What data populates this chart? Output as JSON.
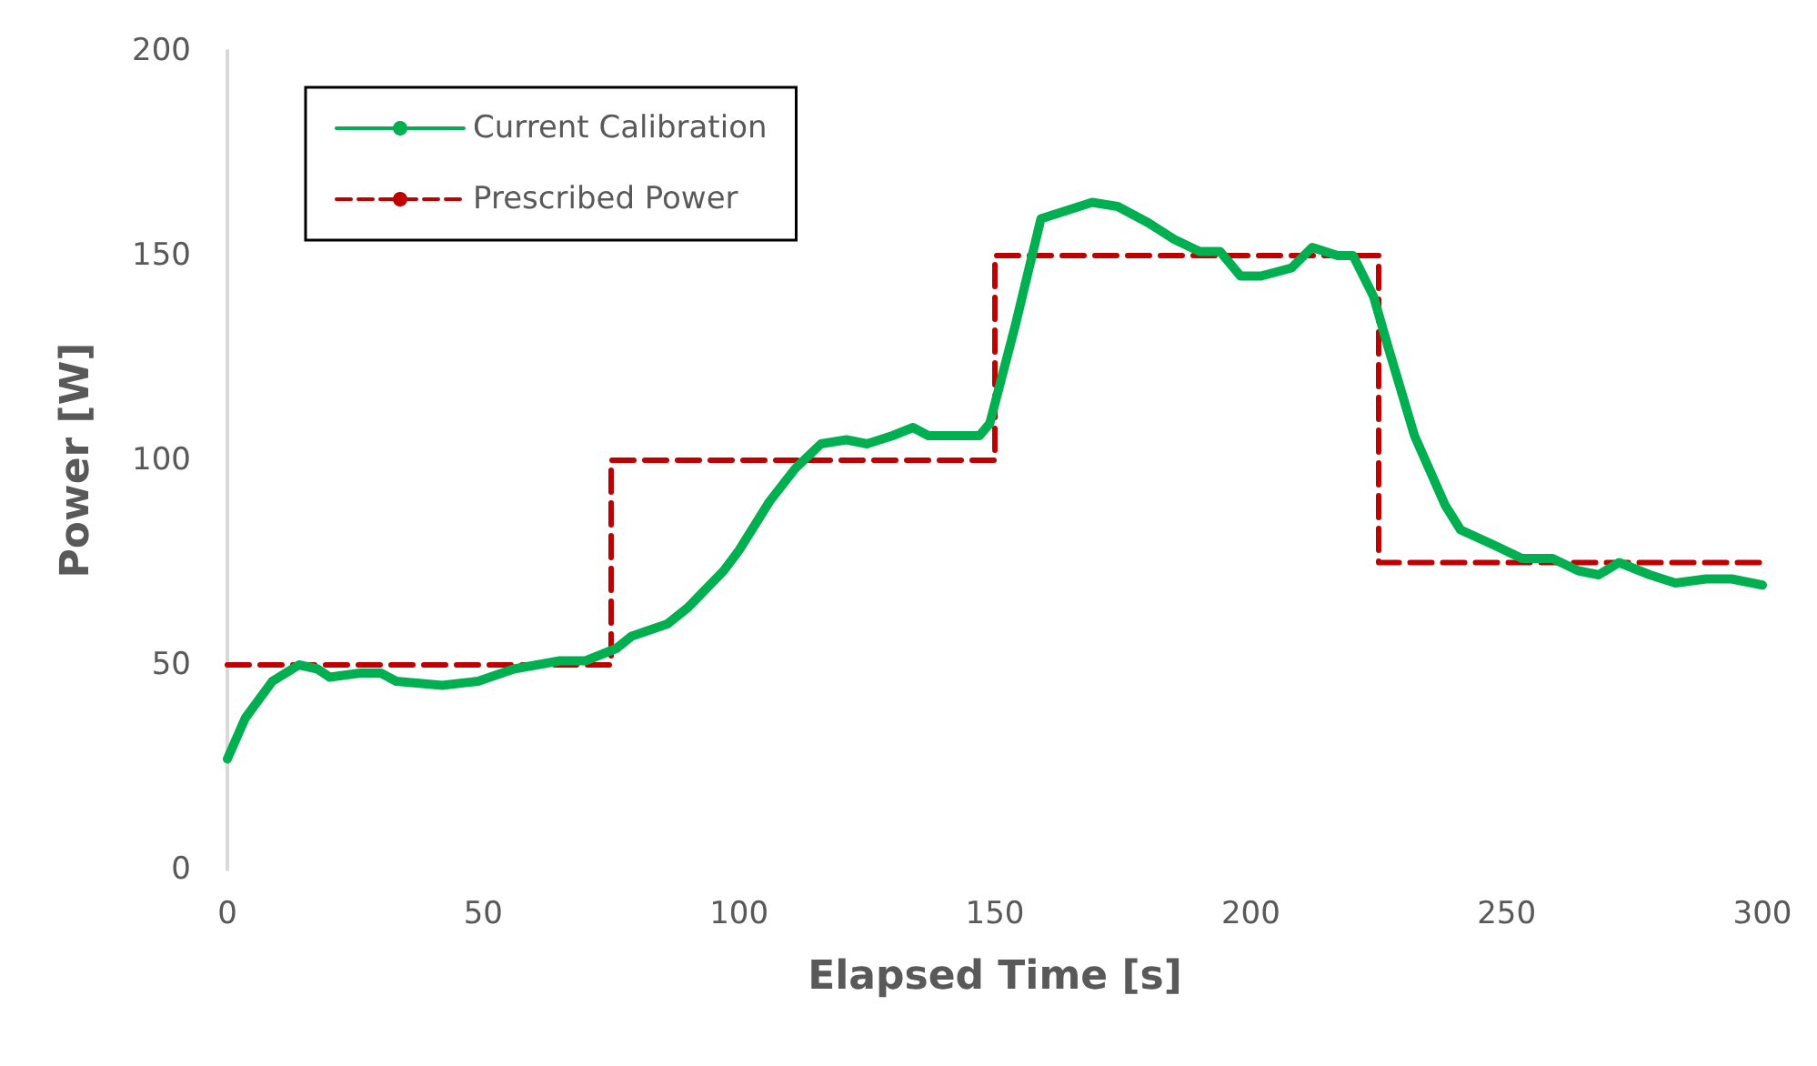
{
  "chart_data": {
    "type": "line",
    "xlabel": "Elapsed Time [s]",
    "ylabel": "Power [W]",
    "xlim": [
      0,
      300
    ],
    "xticks": [
      0,
      50,
      100,
      150,
      200,
      250,
      300
    ],
    "ylim": [
      0,
      200
    ],
    "yticks": [
      0,
      50,
      100,
      150,
      200
    ],
    "grid": false,
    "legend": "top left",
    "series": [
      {
        "name": "Current Calibration",
        "color": "#00b050",
        "line_style": "solid",
        "x": [
          0,
          3.5,
          8.8,
          14,
          17.6,
          20,
          26,
          30,
          33,
          42,
          49,
          56,
          65,
          70,
          76,
          79,
          86,
          90,
          97,
          100,
          106,
          111,
          116,
          121,
          125,
          130,
          134,
          137,
          143,
          147,
          149,
          154,
          159,
          164,
          169,
          174,
          180,
          185,
          190,
          194,
          198,
          202,
          208,
          212,
          217,
          220,
          224,
          227,
          232,
          238,
          241,
          248,
          253,
          259,
          264,
          268,
          272,
          278,
          283,
          289,
          294,
          300
        ],
        "values": [
          27,
          37,
          46,
          50,
          49,
          47,
          48,
          48,
          46,
          45,
          46,
          49,
          51,
          51,
          54,
          57,
          60,
          64,
          73,
          78,
          90,
          98,
          104,
          105,
          104,
          106,
          108,
          106,
          106,
          106,
          109,
          133,
          159,
          161,
          163,
          162,
          158,
          154,
          151,
          151,
          145,
          145,
          147,
          152,
          150,
          150,
          140,
          127,
          106,
          89,
          83,
          79,
          76,
          76,
          73,
          72,
          75,
          72,
          70,
          71,
          71,
          69.5
        ]
      },
      {
        "name": "Prescribed Power",
        "type": "step",
        "color": "#c00000",
        "line_style": "dashed",
        "x": [
          0,
          75,
          150,
          225,
          300
        ],
        "values": [
          50,
          100,
          150,
          75,
          75
        ]
      }
    ]
  }
}
